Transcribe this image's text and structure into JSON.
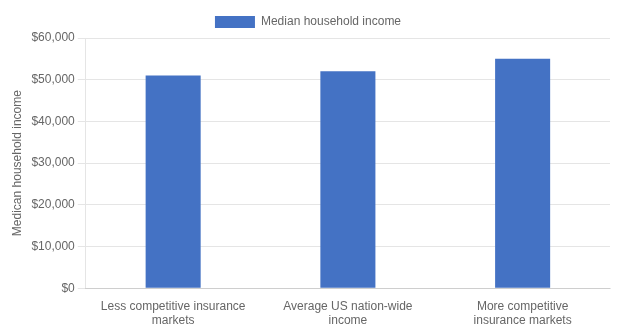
{
  "chart_data": {
    "type": "bar",
    "categories": [
      "Less competitive insurance\nmarkets",
      "Average US nation-wide\nincome",
      "More competitive\ninsurance markets"
    ],
    "series": [
      {
        "name": "Median household income",
        "color": "#4472C4",
        "values": [
          51000,
          52000,
          55000
        ]
      }
    ],
    "ylabel": "Medican household income",
    "ylim": [
      0,
      60000
    ],
    "yticks": [
      {
        "value": 0,
        "label": "$0"
      },
      {
        "value": 10000,
        "label": "$10,000"
      },
      {
        "value": 20000,
        "label": "$20,000"
      },
      {
        "value": 30000,
        "label": "$30,000"
      },
      {
        "value": 40000,
        "label": "$40,000"
      },
      {
        "value": 50000,
        "label": "$50,000"
      },
      {
        "value": 60000,
        "label": "$60,000"
      }
    ],
    "grid": true,
    "legend": "top"
  }
}
